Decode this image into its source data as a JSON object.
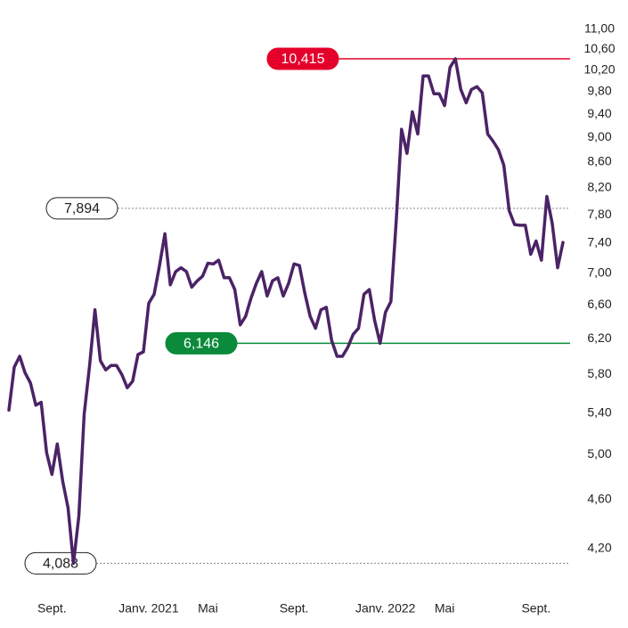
{
  "chart_data": {
    "type": "line",
    "log_scale": true,
    "categories": [
      null,
      null,
      null,
      null,
      null,
      null,
      null,
      null,
      "Sept.",
      null,
      null,
      null,
      null,
      null,
      null,
      null,
      null,
      null,
      null,
      null,
      null,
      null,
      null,
      null,
      null,
      null,
      "Janv. 2021",
      null,
      null,
      null,
      null,
      null,
      null,
      null,
      null,
      null,
      null,
      "Mai",
      null,
      null,
      null,
      null,
      null,
      null,
      null,
      null,
      null,
      null,
      null,
      null,
      null,
      null,
      null,
      "Sept.",
      null,
      null,
      null,
      null,
      null,
      null,
      null,
      null,
      null,
      null,
      null,
      null,
      null,
      null,
      null,
      null,
      "Janv. 2022",
      null,
      null,
      null,
      null,
      null,
      null,
      null,
      null,
      null,
      null,
      "Mai",
      null,
      null,
      null,
      null,
      null,
      null,
      null,
      null,
      null,
      null,
      null,
      null,
      null,
      null,
      null,
      null,
      "Sept.",
      null,
      null,
      null,
      null,
      null
    ],
    "series": [
      {
        "color": "#4b2366",
        "values": [
          5.43,
          5.88,
          6.0,
          5.82,
          5.71,
          5.48,
          5.51,
          5.02,
          4.82,
          5.1,
          4.76,
          4.53,
          4.088,
          4.46,
          5.39,
          5.9,
          6.54,
          5.95,
          5.85,
          5.9,
          5.9,
          5.8,
          5.66,
          5.73,
          6.02,
          6.05,
          6.62,
          6.73,
          7.1,
          7.53,
          6.85,
          7.02,
          7.07,
          7.02,
          6.82,
          6.9,
          6.96,
          7.13,
          7.12,
          7.17,
          6.94,
          6.94,
          6.79,
          6.36,
          6.46,
          6.68,
          6.87,
          7.02,
          6.71,
          6.9,
          6.94,
          6.71,
          6.87,
          7.12,
          7.1,
          6.75,
          6.46,
          6.32,
          6.54,
          6.57,
          6.18,
          6.0,
          6.0,
          6.1,
          6.25,
          6.32,
          6.73,
          6.79,
          6.41,
          6.146,
          6.51,
          6.64,
          7.71,
          9.14,
          8.74,
          9.44,
          9.06,
          10.09,
          10.09,
          9.76,
          9.76,
          9.55,
          10.25,
          10.415,
          9.84,
          9.6,
          9.84,
          9.89,
          9.78,
          9.06,
          8.94,
          8.8,
          8.55,
          7.86,
          7.66,
          7.65,
          7.65,
          7.25,
          7.43,
          7.17,
          8.07,
          7.68,
          7.07,
          7.41
        ]
      }
    ],
    "ylim": [
      4.05,
      11.2
    ],
    "yticks": [
      {
        "value": 4.2,
        "label": "4,20"
      },
      {
        "value": 4.6,
        "label": "4,60"
      },
      {
        "value": 5.0,
        "label": "5,00"
      },
      {
        "value": 5.4,
        "label": "5,40"
      },
      {
        "value": 5.8,
        "label": "5,80"
      },
      {
        "value": 6.2,
        "label": "6,20"
      },
      {
        "value": 6.6,
        "label": "6,60"
      },
      {
        "value": 7.0,
        "label": "7,00"
      },
      {
        "value": 7.4,
        "label": "7,40"
      },
      {
        "value": 7.8,
        "label": "7,80"
      },
      {
        "value": 8.2,
        "label": "8,20"
      },
      {
        "value": 8.6,
        "label": "8,60"
      },
      {
        "value": 9.0,
        "label": "9,00"
      },
      {
        "value": 9.4,
        "label": "9,40"
      },
      {
        "value": 9.8,
        "label": "9,80"
      },
      {
        "value": 10.2,
        "label": "10,20"
      },
      {
        "value": 10.6,
        "label": "10,60"
      },
      {
        "value": 11.0,
        "label": "11,00"
      }
    ],
    "reference_lines": [
      {
        "value": 10.415,
        "label": "10,415",
        "color": "#e4002b",
        "style": "solid"
      },
      {
        "value": 7.894,
        "label": "7,894",
        "color": "#888888",
        "style": "dotted"
      },
      {
        "value": 6.146,
        "label": "6,146",
        "color": "#0a8a3a",
        "style": "solid"
      },
      {
        "value": 4.088,
        "label": "4,088",
        "color": "#888888",
        "style": "dotted"
      }
    ]
  }
}
